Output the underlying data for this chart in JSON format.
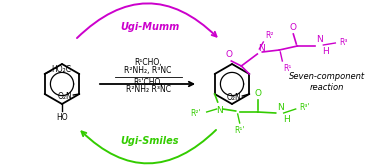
{
  "bg_color": "#ffffff",
  "magenta": "#cc00cc",
  "green": "#33cc00",
  "black": "#000000",
  "ugi_mumm_label": "Ugi-Mumm",
  "ugi_smiles_label": "Ugi-Smiles",
  "seven_component_label": "Seven-component\nreaction",
  "figsize": [
    3.78,
    1.68
  ],
  "dpi": 100
}
